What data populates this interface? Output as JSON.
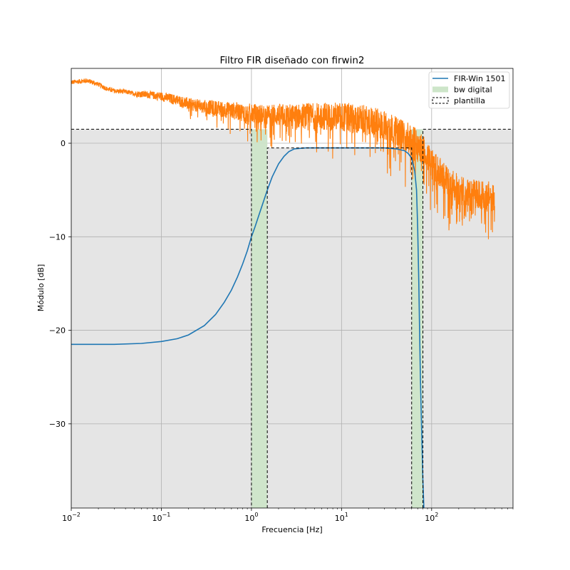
{
  "chart_data": {
    "type": "line",
    "title": "Filtro FIR diseñado con firwin2",
    "xlabel": "Frecuencia [Hz]",
    "ylabel": "Módulo [dB]",
    "xscale": "log",
    "xlim": [
      0.01,
      800
    ],
    "ylim": [
      -39,
      8
    ],
    "grid": true,
    "background_color": "#e5e5e5",
    "legend_position": "top-right",
    "x_ticks": [
      {
        "value": 0.01,
        "base": "10",
        "exp": "−2"
      },
      {
        "value": 0.1,
        "base": "10",
        "exp": "−1"
      },
      {
        "value": 1,
        "base": "10",
        "exp": "0"
      },
      {
        "value": 10,
        "base": "10",
        "exp": "1"
      },
      {
        "value": 100,
        "base": "10",
        "exp": "2"
      }
    ],
    "y_ticks": [
      {
        "value": 0,
        "label": "0"
      },
      {
        "value": -10,
        "label": "−10"
      },
      {
        "value": -20,
        "label": "−20"
      },
      {
        "value": -30,
        "label": "−30"
      }
    ],
    "series": [
      {
        "name": "FIR-Win 1501",
        "kind": "line",
        "color": "#1f77b4",
        "x": [
          0.01,
          0.03,
          0.06,
          0.1,
          0.15,
          0.2,
          0.3,
          0.4,
          0.5,
          0.6,
          0.7,
          0.8,
          0.9,
          1.0,
          1.1,
          1.2,
          1.3,
          1.5,
          1.7,
          2.0,
          2.3,
          2.6,
          3.0,
          4.0,
          6.0,
          10,
          20,
          30,
          40,
          50,
          55,
          60,
          65,
          68,
          70,
          72,
          75,
          78,
          80,
          82
        ],
        "y": [
          -21.5,
          -21.5,
          -21.4,
          -21.2,
          -20.9,
          -20.5,
          -19.5,
          -18.3,
          -17.0,
          -15.7,
          -14.3,
          -12.9,
          -11.5,
          -10.0,
          -8.9,
          -7.8,
          -6.8,
          -5.0,
          -3.6,
          -2.2,
          -1.4,
          -0.9,
          -0.6,
          -0.5,
          -0.5,
          -0.5,
          -0.5,
          -0.5,
          -0.6,
          -0.8,
          -1.1,
          -1.6,
          -3.0,
          -5.0,
          -9.0,
          -15.0,
          -25.0,
          -32.0,
          -36.0,
          -39.0
        ]
      },
      {
        "name": "",
        "kind": "noisy-line",
        "color": "#ff7f0e",
        "x": [
          0.01,
          0.012,
          0.015,
          0.02,
          0.025,
          0.03,
          0.04,
          0.05,
          0.07,
          0.1,
          0.15,
          0.2,
          0.3,
          0.5,
          0.7,
          1,
          1.5,
          2,
          3,
          5,
          7,
          10,
          15,
          20,
          30,
          40,
          50,
          60,
          70,
          80,
          90,
          100,
          120,
          150,
          200,
          250,
          300,
          400,
          500
        ],
        "y": [
          6.5,
          6.6,
          6.7,
          6.3,
          5.8,
          5.6,
          5.5,
          5.3,
          5.2,
          5.0,
          4.6,
          4.2,
          3.9,
          3.6,
          3.4,
          3.2,
          3.0,
          3.0,
          2.9,
          2.9,
          2.9,
          2.8,
          2.6,
          2.4,
          1.9,
          1.3,
          0.8,
          0.4,
          -0.2,
          -0.7,
          -1.4,
          -2.0,
          -3.0,
          -4.0,
          -5.0,
          -5.3,
          -5.5,
          -5.6,
          -5.7
        ],
        "noise": 1.0
      }
    ],
    "bands": [
      {
        "name": "bw digital",
        "color": "#cde5c9",
        "regions": [
          {
            "x0": 1.0,
            "x1": 1.5
          },
          {
            "x0": 60,
            "x1": 80
          }
        ],
        "y_top": 1.5
      },
      {
        "name": "plantilla",
        "edge_color": "#000000"
      }
    ],
    "template": {
      "passband_min": -0.5,
      "stopband_max": 1.5,
      "stop1": 1.0,
      "pass1": 1.5,
      "pass2": 60,
      "stop2": 80
    }
  }
}
